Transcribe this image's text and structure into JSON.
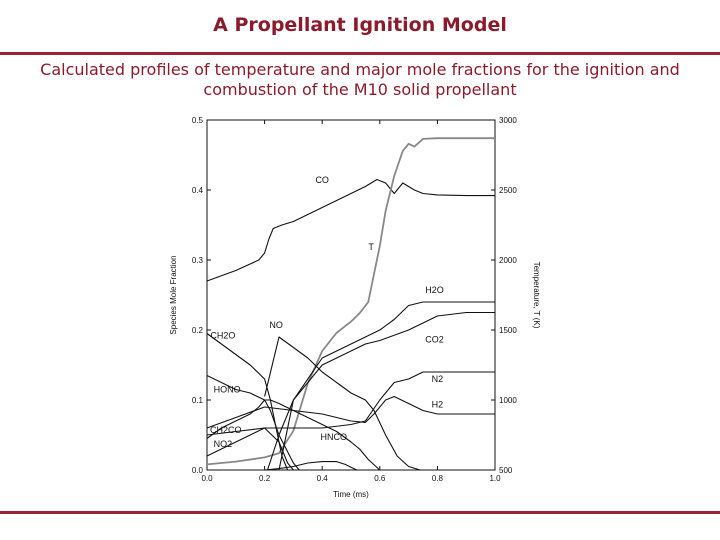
{
  "slide": {
    "title": "A Propellant Ignition Model",
    "subtitle": "Calculated profiles of temperature and major mole fractions for the ignition and combustion of the M10 solid propellant"
  },
  "colors": {
    "accent": "#9b2335",
    "title_text": "#8b1a2b",
    "species_line": "#111111",
    "temperature_line": "#888888"
  },
  "chart_data": {
    "type": "line",
    "xlabel": "Time (ms)",
    "ylabel": "Species Mole Fraction",
    "y2label": "Temperature, T (K)",
    "xlim": [
      0.0,
      1.0
    ],
    "ylim": [
      0.0,
      0.5
    ],
    "y2lim": [
      500,
      3000
    ],
    "x_ticks": [
      "0.0",
      "0.2",
      "0.4",
      "0.6",
      "0.8",
      "1.0"
    ],
    "y_ticks": [
      "0.0",
      "0.1",
      "0.2",
      "0.3",
      "0.4",
      "0.5"
    ],
    "y2_ticks": [
      "500",
      "1000",
      "1500",
      "2000",
      "2500",
      "3000"
    ],
    "series": [
      {
        "name": "CO",
        "axis": "left",
        "x": [
          0.0,
          0.1,
          0.18,
          0.2,
          0.215,
          0.23,
          0.26,
          0.3,
          0.35,
          0.4,
          0.45,
          0.5,
          0.55,
          0.59,
          0.62,
          0.65,
          0.68,
          0.72,
          0.75,
          0.8,
          0.9,
          1.0
        ],
        "y": [
          0.27,
          0.285,
          0.3,
          0.31,
          0.33,
          0.345,
          0.35,
          0.355,
          0.365,
          0.375,
          0.385,
          0.395,
          0.405,
          0.415,
          0.41,
          0.395,
          0.41,
          0.4,
          0.395,
          0.393,
          0.392,
          0.392
        ]
      },
      {
        "name": "T",
        "axis": "right",
        "x": [
          0.0,
          0.1,
          0.2,
          0.25,
          0.3,
          0.35,
          0.4,
          0.45,
          0.5,
          0.53,
          0.56,
          0.58,
          0.6,
          0.62,
          0.65,
          0.68,
          0.7,
          0.72,
          0.75,
          0.8,
          0.9,
          1.0
        ],
        "y": [
          540,
          560,
          590,
          620,
          780,
          1120,
          1350,
          1480,
          1560,
          1620,
          1700,
          1900,
          2100,
          2350,
          2600,
          2780,
          2830,
          2810,
          2865,
          2870,
          2870,
          2870
        ]
      },
      {
        "name": "H2O",
        "axis": "left",
        "x": [
          0.25,
          0.3,
          0.4,
          0.5,
          0.55,
          0.6,
          0.65,
          0.7,
          0.75,
          0.8,
          0.9,
          1.0
        ],
        "y": [
          0.0,
          0.1,
          0.16,
          0.18,
          0.19,
          0.2,
          0.215,
          0.235,
          0.24,
          0.24,
          0.24,
          0.24
        ]
      },
      {
        "name": "CO2",
        "axis": "left",
        "x": [
          0.21,
          0.25,
          0.3,
          0.4,
          0.5,
          0.55,
          0.6,
          0.7,
          0.75,
          0.8,
          0.9,
          1.0
        ],
        "y": [
          0.0,
          0.05,
          0.1,
          0.15,
          0.17,
          0.18,
          0.185,
          0.2,
          0.21,
          0.22,
          0.225,
          0.225
        ]
      },
      {
        "name": "N2",
        "axis": "left",
        "x": [
          0.0,
          0.1,
          0.2,
          0.3,
          0.4,
          0.5,
          0.55,
          0.6,
          0.65,
          0.7,
          0.75,
          0.8,
          0.9,
          1.0
        ],
        "y": [
          0.05,
          0.055,
          0.06,
          0.06,
          0.06,
          0.065,
          0.07,
          0.1,
          0.125,
          0.13,
          0.14,
          0.14,
          0.14,
          0.14
        ]
      },
      {
        "name": "H2",
        "axis": "left",
        "x": [
          0.0,
          0.1,
          0.2,
          0.3,
          0.4,
          0.5,
          0.55,
          0.58,
          0.62,
          0.65,
          0.7,
          0.75,
          0.8,
          0.9,
          1.0
        ],
        "y": [
          0.06,
          0.075,
          0.09,
          0.085,
          0.08,
          0.07,
          0.068,
          0.08,
          0.1,
          0.105,
          0.095,
          0.085,
          0.08,
          0.08,
          0.08
        ]
      },
      {
        "name": "NO",
        "axis": "left",
        "x": [
          0.2,
          0.25,
          0.3,
          0.35,
          0.4,
          0.45,
          0.5,
          0.55,
          0.58,
          0.62,
          0.66,
          0.7,
          0.74
        ],
        "y": [
          0.105,
          0.19,
          0.175,
          0.16,
          0.14,
          0.125,
          0.11,
          0.1,
          0.085,
          0.05,
          0.02,
          0.005,
          0.0
        ]
      },
      {
        "name": "CH2O",
        "axis": "left",
        "x": [
          0.0,
          0.05,
          0.1,
          0.15,
          0.2,
          0.22,
          0.24,
          0.26,
          0.28
        ],
        "y": [
          0.195,
          0.18,
          0.165,
          0.15,
          0.13,
          0.1,
          0.06,
          0.02,
          0.0
        ]
      },
      {
        "name": "HONO",
        "axis": "left",
        "x": [
          0.0,
          0.05,
          0.1,
          0.15,
          0.2,
          0.22,
          0.25,
          0.3,
          0.35,
          0.4,
          0.45,
          0.5,
          0.53,
          0.56,
          0.6
        ],
        "y": [
          0.135,
          0.125,
          0.115,
          0.11,
          0.1,
          0.1,
          0.095,
          0.085,
          0.075,
          0.065,
          0.055,
          0.04,
          0.03,
          0.015,
          0.0
        ]
      },
      {
        "name": "CH2CO",
        "axis": "left",
        "x": [
          0.0,
          0.05,
          0.1,
          0.15,
          0.18,
          0.2,
          0.22,
          0.25,
          0.3,
          0.32
        ],
        "y": [
          0.045,
          0.06,
          0.07,
          0.08,
          0.09,
          0.1,
          0.085,
          0.05,
          0.01,
          0.0
        ]
      },
      {
        "name": "NO2",
        "axis": "left",
        "x": [
          0.0,
          0.05,
          0.1,
          0.15,
          0.2,
          0.25,
          0.28,
          0.3
        ],
        "y": [
          0.02,
          0.03,
          0.04,
          0.05,
          0.06,
          0.04,
          0.01,
          0.0
        ]
      },
      {
        "name": "HNCO",
        "axis": "left",
        "x": [
          0.2,
          0.25,
          0.3,
          0.35,
          0.4,
          0.45,
          0.48,
          0.5,
          0.52
        ],
        "y": [
          0.0,
          0.002,
          0.005,
          0.01,
          0.012,
          0.012,
          0.008,
          0.004,
          0.0
        ]
      }
    ],
    "annotations": [
      {
        "text": "CO",
        "x": 0.4,
        "y": 0.41
      },
      {
        "text": "T",
        "x": 0.57,
        "y": 0.314
      },
      {
        "text": "H2O",
        "x": 0.79,
        "y": 0.253
      },
      {
        "text": "NO",
        "x": 0.24,
        "y": 0.203
      },
      {
        "text": "CH2O",
        "x": 0.055,
        "y": 0.188
      },
      {
        "text": "CO2",
        "x": 0.79,
        "y": 0.182
      },
      {
        "text": "N2",
        "x": 0.8,
        "y": 0.126
      },
      {
        "text": "HONO",
        "x": 0.07,
        "y": 0.111
      },
      {
        "text": "H2",
        "x": 0.8,
        "y": 0.089
      },
      {
        "text": "CH2CO",
        "x": 0.065,
        "y": 0.053
      },
      {
        "text": "HNCO",
        "x": 0.44,
        "y": 0.043
      },
      {
        "text": "NO2",
        "x": 0.055,
        "y": 0.033
      }
    ]
  }
}
